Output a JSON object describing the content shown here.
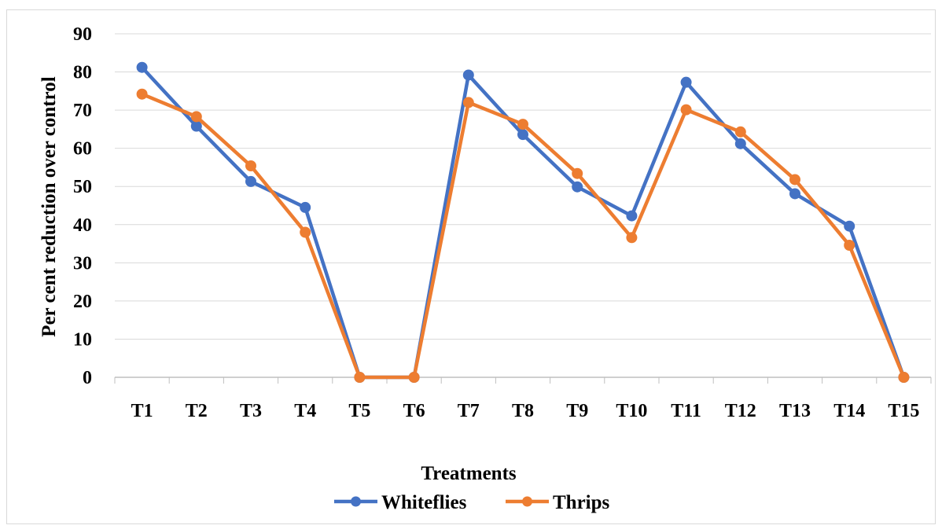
{
  "chart_data": {
    "type": "line",
    "title": "",
    "xlabel": "Treatments",
    "ylabel": "Per cent reduction over control",
    "categories": [
      "T1",
      "T2",
      "T3",
      "T4",
      "T5",
      "T6",
      "T7",
      "T8",
      "T9",
      "T10",
      "T11",
      "T12",
      "T13",
      "T14",
      "T15"
    ],
    "ylim": [
      0,
      90
    ],
    "yticks": [
      0,
      10,
      20,
      30,
      40,
      50,
      60,
      70,
      80,
      90
    ],
    "ytick_labels": [
      "0",
      "10",
      "20",
      "30",
      "40",
      "50",
      "60",
      "70",
      "80",
      "90"
    ],
    "grid": true,
    "legend_position": "bottom",
    "series": [
      {
        "name": "Whiteflies",
        "color": "#4472C4",
        "values": [
          81.2,
          65.8,
          51.3,
          44.5,
          0,
          0,
          79.2,
          63.6,
          49.9,
          42.3,
          77.3,
          61.2,
          48.1,
          39.6,
          0
        ]
      },
      {
        "name": "Thrips",
        "color": "#ED7D31",
        "values": [
          74.2,
          68.3,
          55.4,
          38.0,
          0,
          0,
          72.0,
          66.3,
          53.4,
          36.6,
          70.1,
          64.3,
          51.8,
          34.6,
          0
        ]
      }
    ]
  }
}
